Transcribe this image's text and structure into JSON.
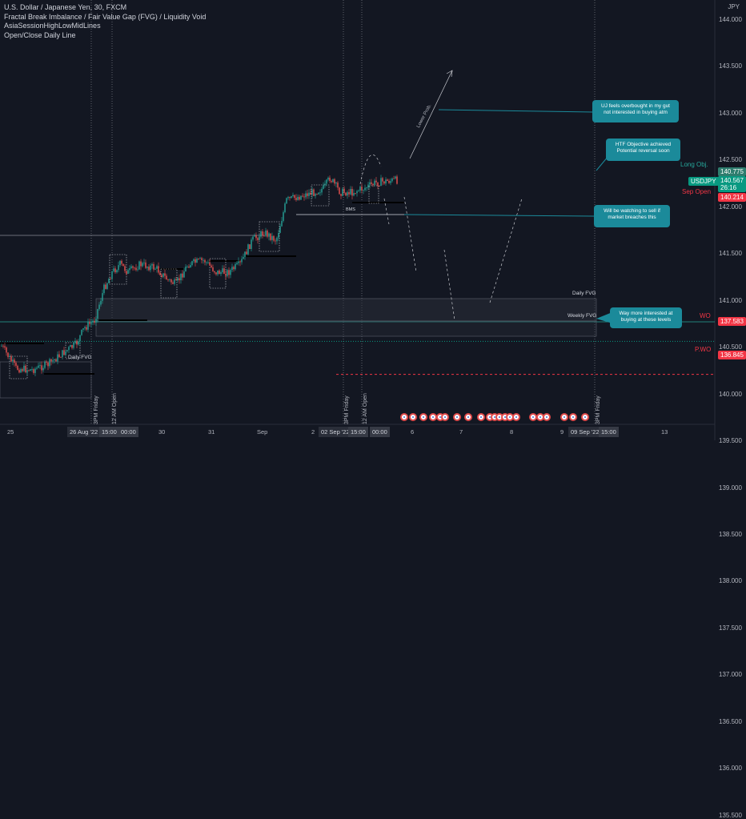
{
  "legend": {
    "symbol_line": "U.S. Dollar / Japanese Yen, 30, FXCM",
    "indicators": [
      "Fractal Break Imbalance / Fair Value Gap (FVG) / Liquidity Void",
      "AsiaSessionHighLowMidLines",
      "Open/Close Daily Line"
    ]
  },
  "price_axis": {
    "unit": "JPY",
    "ticks": [
      "144.000",
      "143.500",
      "143.000",
      "142.500",
      "142.000",
      "141.500",
      "141.000",
      "140.500",
      "140.000",
      "139.500",
      "139.000",
      "138.500",
      "138.000",
      "137.500",
      "137.000",
      "136.500",
      "136.000",
      "135.500"
    ]
  },
  "price_tags": {
    "long_obj": {
      "label": "Long Obj.",
      "price": "140.775",
      "color": "#26a69a"
    },
    "current": {
      "symbol": "USDJPY",
      "price": "140.567",
      "countdown": "26:16",
      "color": "#089981"
    },
    "sep_open": {
      "label": "Sep Open",
      "price": "140.214",
      "color": "#f23645"
    },
    "wo": {
      "label": "WO",
      "price": "137.583",
      "color": "#f23645"
    },
    "pwo": {
      "label": "P.WO",
      "price": "136.845",
      "color": "#f23645"
    }
  },
  "chart_labels": {
    "daily_fvg": "Daily FVG",
    "weekly_fvg": "Weekly FVG",
    "daily_fvg_small": "Daily FVG",
    "bms": "BMS",
    "lower_prob": "Lower Prob."
  },
  "callouts": [
    {
      "text": "UJ feels overbought in my gut not interested in buying atm"
    },
    {
      "text": "HTF Objective achieved Potential reversal soon"
    },
    {
      "text": "Will be watching to sell if market breaches this"
    },
    {
      "text": "Way more interested at buying at these levels"
    }
  ],
  "session_markers": [
    "3PM Friday",
    "12 AM Open",
    "3PM Friday",
    "12 AM Open",
    "3PM Friday"
  ],
  "time_axis": {
    "labels": [
      "25",
      "30",
      "31",
      "Sep",
      "2",
      "6",
      "7",
      "8",
      "9",
      "13"
    ],
    "badges": [
      "26 Aug '22",
      "15:00",
      "00:00",
      "02 Sep '22",
      "15:00",
      "00:00",
      "09 Sep '22",
      "15:00"
    ]
  }
}
